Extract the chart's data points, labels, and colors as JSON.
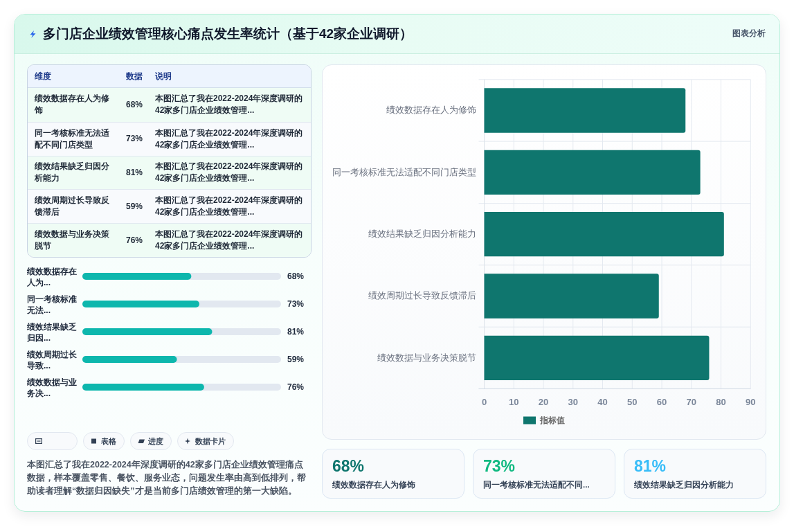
{
  "chart_data": [
    {
      "type": "other",
      "title": "多门店企业绩效管理核心痛点发生率统计（基于42家企业调研）",
      "annotations": [
        "图表分析"
      ]
    },
    {
      "type": "other",
      "categories": [
        "绩效数据存在人为修饰",
        "同一考核标准无法适配不同门店类型",
        "绩效结果缺乏归因分析能力",
        "绩效周期过长导致反馈滞后",
        "绩效数据与业务决策脱节"
      ],
      "value_labels": [
        "68%",
        "73%",
        "81%",
        "59%",
        "76%"
      ],
      "annotations": [
        "维度",
        "数据",
        "说明",
        "本图汇总了我在2022-2024年深度调研的42家多门店企业绩效管理...",
        "本图汇总了我在2022-2024年深度调研的42家多门店企业绩效管理...",
        "本图汇总了我在2022-2024年深度调研的42家多门店企业绩效管理...",
        "本图汇总了我在2022-2024年深度调研的42家多门店企业绩效管理...",
        "本图汇总了我在2022-2024年深度调研的42家多门店企业绩效管理..."
      ]
    },
    {
      "type": "bar",
      "orientation": "horizontal",
      "categories": [
        "绩效数据存在人为...",
        "同一考核标准无法...",
        "绩效结果缺乏归因...",
        "绩效周期过长导致...",
        "绩效数据与业务决..."
      ],
      "values": [
        68,
        73,
        81,
        59,
        76
      ],
      "value_labels": [
        "68%",
        "73%",
        "81%",
        "59%",
        "76%"
      ],
      "color": "#0db7ad",
      "xlim": [
        0,
        124
      ]
    },
    {
      "type": "other",
      "annotations": [
        "表格",
        "进度",
        "数据卡片",
        "本图汇总了我在2022-2024年深度调研的42家多门店企业绩效管理痛点数据，样本覆盖零售、餐饮、服务业态，问题发生率由高到低排列，帮助读者理解“数据归因缺失”才是当前多门店绩效管理的第一大缺陷。"
      ]
    },
    {
      "type": "bar",
      "orientation": "horizontal",
      "categories": [
        "绩效数据存在人为修饰",
        "同一考核标准无法适配不同门店类型",
        "绩效结果缺乏归因分析能力",
        "绩效周期过长导致反馈滞后",
        "绩效数据与业务决策脱节"
      ],
      "series": [
        {
          "name": "指标值",
          "color": "#0f766e",
          "values": [
            68,
            73,
            81,
            59,
            76
          ]
        }
      ],
      "xlim": [
        0,
        90
      ],
      "xticks": [
        0,
        10,
        20,
        30,
        40,
        50,
        60,
        70,
        80,
        90
      ],
      "grid": true,
      "legend": "bottom"
    },
    {
      "type": "other",
      "categories": [
        "绩效数据存在人为修饰",
        "同一考核标准无法适配不同...",
        "绩效结果缺乏归因分析能力"
      ],
      "value_labels": [
        "68%",
        "73%",
        "81%"
      ]
    }
  ]
}
